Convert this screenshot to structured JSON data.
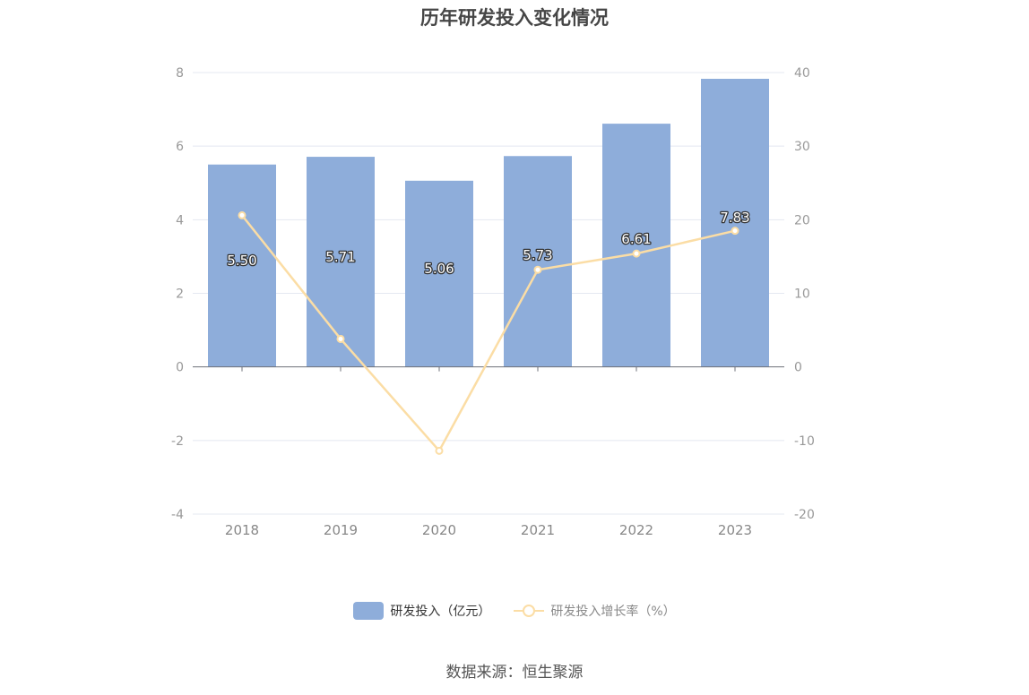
{
  "title": "历年研发投入变化情况",
  "source": "数据来源：恒生聚源",
  "colors": {
    "bar": "#8eadda",
    "line": "#fbdda5",
    "grid": "#e4e8f1",
    "axis": "#6e7079",
    "tick_text": "#999999"
  },
  "legend": {
    "bar_label": "研发投入（亿元）",
    "line_label": "研发投入增长率（%）"
  },
  "chart_data": {
    "type": "bar",
    "title": "历年研发投入变化情况",
    "categories": [
      "2018",
      "2019",
      "2020",
      "2021",
      "2022",
      "2023"
    ],
    "series": [
      {
        "name": "研发投入（亿元）",
        "type": "bar",
        "axis": "left",
        "values": [
          5.5,
          5.71,
          5.06,
          5.73,
          6.61,
          7.83
        ],
        "labels": [
          "5.50",
          "5.71",
          "5.06",
          "5.73",
          "6.61",
          "7.83"
        ]
      },
      {
        "name": "研发投入增长率（%）",
        "type": "line",
        "axis": "right",
        "values": [
          20.6,
          3.8,
          -11.4,
          13.2,
          15.4,
          18.5
        ]
      }
    ],
    "y_left": {
      "min": -4,
      "max": 8,
      "ticks": [
        "-4",
        "-2",
        "0",
        "2",
        "4",
        "6",
        "8"
      ]
    },
    "y_right": {
      "min": -20,
      "max": 40,
      "ticks": [
        "-20",
        "-10",
        "0",
        "10",
        "20",
        "30",
        "40"
      ]
    },
    "grid": true,
    "legend_position": "bottom-center"
  }
}
